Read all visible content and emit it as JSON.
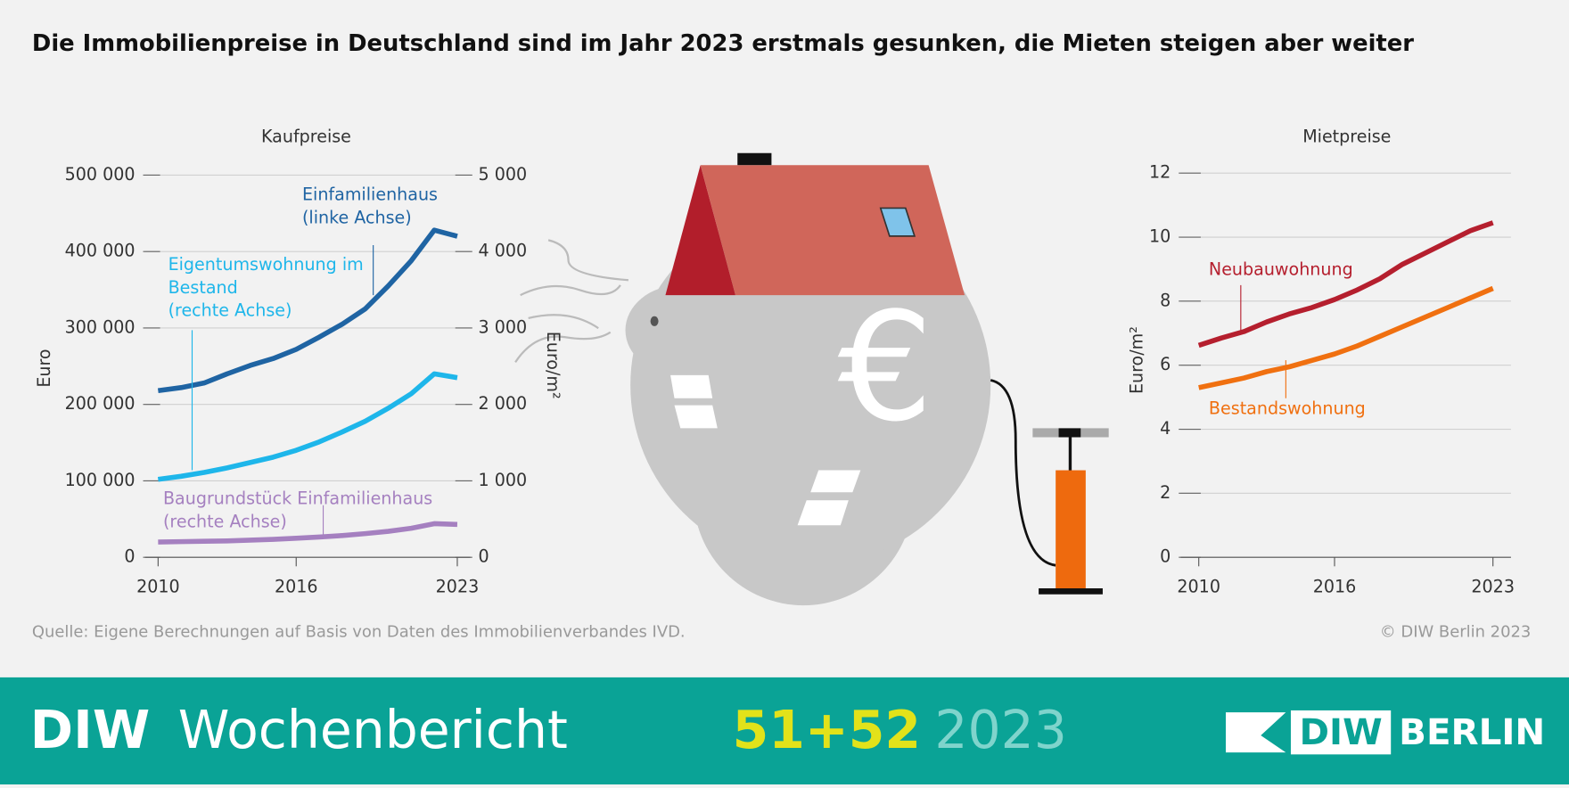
{
  "title": "Die Immobilienpreise in Deutschland sind im Jahr 2023 erstmals gesunken, die Mieten steigen aber weiter",
  "chart_data": [
    {
      "type": "line",
      "title": "Kaufpreise",
      "ylabel": "Euro",
      "y2label": "Euro/m²",
      "x": [
        2010,
        2011,
        2012,
        2013,
        2014,
        2015,
        2016,
        2017,
        2018,
        2019,
        2020,
        2021,
        2022,
        2023
      ],
      "xlim": [
        2010,
        2023
      ],
      "xticks": [
        2010,
        2016,
        2023
      ],
      "ylim": [
        0,
        500000
      ],
      "yticks": [
        0,
        {
          "value": 100000,
          "label": "100 000"
        },
        {
          "value": 200000,
          "label": "200 000"
        },
        {
          "value": 300000,
          "label": "300 000"
        },
        {
          "value": 400000,
          "label": "400 000"
        },
        {
          "value": 500000,
          "label": "500 000"
        }
      ],
      "y2lim": [
        0,
        5000
      ],
      "y2ticks": [
        0,
        {
          "value": 1000,
          "label": "1 000"
        },
        {
          "value": 2000,
          "label": "2 000"
        },
        {
          "value": 3000,
          "label": "3 000"
        },
        {
          "value": 4000,
          "label": "4 000"
        },
        {
          "value": 5000,
          "label": "5 000"
        }
      ],
      "grid": true,
      "series": [
        {
          "name": "Einfamilienhaus",
          "note": "(linke Achse)",
          "color": "#1f64a3",
          "axis": "y",
          "values": [
            218000,
            222000,
            228000,
            240000,
            251000,
            260000,
            272000,
            288000,
            305000,
            325000,
            355000,
            388000,
            428000,
            420000
          ]
        },
        {
          "name": "Eigentumswohnung im Bestand",
          "note": "(rechte Achse)",
          "color": "#1eb6ea",
          "axis": "y2",
          "values": [
            1020,
            1060,
            1110,
            1170,
            1240,
            1310,
            1400,
            1510,
            1640,
            1780,
            1950,
            2140,
            2400,
            2350
          ]
        },
        {
          "name": "Baugrundstück Einfamilienhaus",
          "note": "(rechte Achse)",
          "color": "#a580c0",
          "axis": "y2",
          "values": [
            200,
            205,
            210,
            215,
            225,
            235,
            250,
            265,
            285,
            310,
            340,
            380,
            440,
            430
          ]
        }
      ]
    },
    {
      "type": "line",
      "title": "Mietpreise",
      "ylabel": "Euro/m²",
      "x": [
        2010,
        2011,
        2012,
        2013,
        2014,
        2015,
        2016,
        2017,
        2018,
        2019,
        2020,
        2021,
        2022,
        2023
      ],
      "xlim": [
        2010,
        2023
      ],
      "xticks": [
        2010,
        2016,
        2023
      ],
      "ylim": [
        0,
        12
      ],
      "yticks": [
        0,
        2,
        4,
        6,
        8,
        10,
        12
      ],
      "grid": true,
      "series": [
        {
          "name": "Neubauwohnung",
          "color": "#b51f2e",
          "values": [
            6.62,
            6.85,
            7.05,
            7.35,
            7.6,
            7.8,
            8.05,
            8.35,
            8.7,
            9.15,
            9.5,
            9.85,
            10.2,
            10.45
          ]
        },
        {
          "name": "Bestandswohnung",
          "color": "#f07010",
          "values": [
            5.3,
            5.45,
            5.6,
            5.8,
            5.95,
            6.15,
            6.35,
            6.6,
            6.9,
            7.2,
            7.5,
            7.8,
            8.1,
            8.4
          ]
        }
      ]
    }
  ],
  "illustration_symbol": "€",
  "source": "Quelle: Eigene Berechnungen auf Basis von Daten des Immobilienverbandes IVD.",
  "copyright": "© DIW Berlin 2023",
  "footer": {
    "brand_bold": "DIW",
    "brand": "Wochenbericht",
    "issue": "51+52",
    "year": "2023",
    "logo_bold": "DIW",
    "logo": "BERLIN"
  }
}
